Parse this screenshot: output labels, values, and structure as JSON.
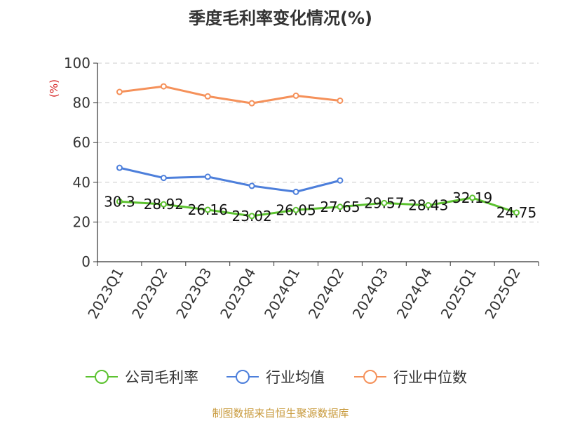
{
  "chart_data": {
    "type": "line",
    "title": "季度毛利率变化情况(%)",
    "ylabel": "(%)",
    "xlabel": "",
    "categories": [
      "2023Q1",
      "2023Q2",
      "2023Q3",
      "2023Q4",
      "2024Q1",
      "2024Q2",
      "2024Q3",
      "2024Q4",
      "2025Q1",
      "2025Q2"
    ],
    "ylim": [
      0,
      100
    ],
    "yticks": [
      0,
      20,
      40,
      60,
      80,
      100
    ],
    "grid": true,
    "legend_position": "bottom",
    "series": [
      {
        "name": "公司毛利率",
        "color": "#5cc230",
        "values": [
          30.3,
          28.92,
          26.16,
          23.02,
          26.05,
          27.65,
          29.57,
          28.43,
          32.19,
          24.75
        ],
        "labels": [
          "30.3",
          "28.92",
          "26.16",
          "23.02",
          "26.05",
          "27.65",
          "29.57",
          "28.43",
          "32.19",
          "24.75"
        ]
      },
      {
        "name": "行业均值",
        "color": "#4d7fdb",
        "values": [
          47.3,
          42.2,
          42.8,
          38.2,
          35.2,
          40.9,
          null,
          null,
          null,
          null
        ]
      },
      {
        "name": "行业中位数",
        "color": "#f5915a",
        "values": [
          85.5,
          88.3,
          83.3,
          79.8,
          83.6,
          81.1,
          null,
          null,
          null,
          null
        ]
      }
    ]
  },
  "footer": {
    "source": "制图数据来自恒生聚源数据库"
  }
}
